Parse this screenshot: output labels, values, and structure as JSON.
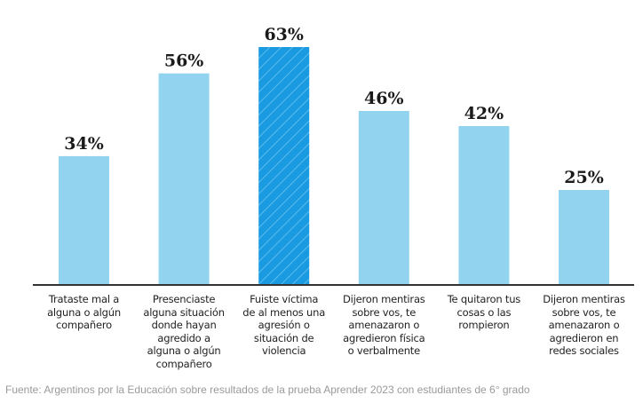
{
  "chart_data": {
    "type": "bar",
    "title": "",
    "xlabel": "",
    "ylabel": "",
    "ylim": [
      0,
      63
    ],
    "grid": false,
    "value_suffix": "%",
    "categories": [
      "Trataste mal a alguna o algún compañero",
      "Presenciaste alguna situación donde hayan agredido a alguna o algún compañero",
      "Fuiste víctima de al menos una agresión o situación de violencia",
      "Dijeron mentiras sobre vos, te amenazaron o agredieron física o verbalmente",
      "Te quitaron tus cosas o las rompieron",
      "Dijeron mentiras sobre vos, te amenazaron o agredieron en redes sociales"
    ],
    "category_lines": [
      [
        "Trataste mal a",
        "alguna o algún",
        "compañero"
      ],
      [
        "Presenciaste",
        "alguna situación",
        "donde hayan",
        "agredido a",
        "alguna o algún",
        "compañero"
      ],
      [
        "Fuiste víctima",
        "de al menos una",
        "agresión o",
        "situación de",
        "violencia"
      ],
      [
        "Dijeron mentiras",
        "sobre vos, te",
        "amenazaron o",
        "agredieron física",
        "o verbalmente"
      ],
      [
        "Te quitaron tus",
        "cosas o las",
        "rompieron"
      ],
      [
        "Dijeron mentiras",
        "sobre vos, te",
        "amenazaron o",
        "agredieron en",
        "redes sociales"
      ]
    ],
    "values": [
      34,
      56,
      63,
      46,
      42,
      25
    ],
    "labels": [
      "34%",
      "56%",
      "63%",
      "46%",
      "42%",
      "25%"
    ],
    "highlight_index": 2,
    "colors": {
      "bar": "#92d3f0",
      "highlight": "#1a9ae0",
      "highlight_hatch": "#6cc4f2",
      "axis": "#333333"
    }
  },
  "source": "Fuente: Argentinos por la Educación sobre resultados de la prueba Aprender 2023 con  estudiantes de 6° grado"
}
